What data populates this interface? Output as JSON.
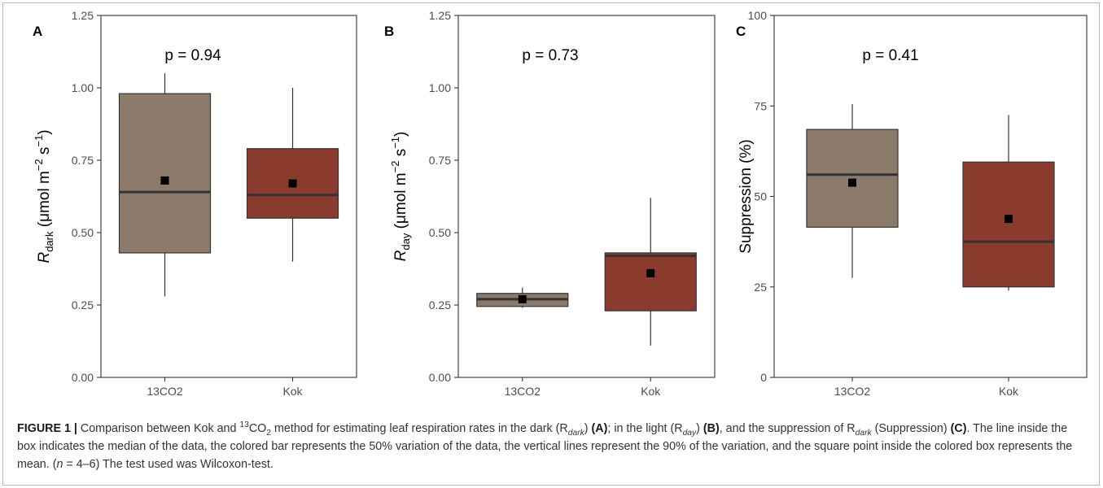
{
  "colors": {
    "box_13co2": "#8c7b6a",
    "box_kok": "#8b3a2e",
    "line": "#333333",
    "mean": "#000000"
  },
  "chart_data": [
    {
      "type": "box",
      "panel": "A",
      "pvalue": "p = 0.94",
      "ylabel": {
        "italic": "R",
        "sub": "dark",
        "rest": " (μmol m",
        "sup1": "−2",
        "mid": " s",
        "sup2": "−1",
        "end": ")"
      },
      "ylim": [
        0,
        1.25
      ],
      "yticks": [
        0,
        0.25,
        0.5,
        0.75,
        1.0,
        1.25
      ],
      "ytick_labels": [
        "0.00",
        "0.25",
        "0.50",
        "0.75",
        "1.00",
        "1.25"
      ],
      "categories": [
        "13CO2",
        "Kok"
      ],
      "boxes": [
        {
          "category": "13CO2",
          "whisker_low": 0.28,
          "q1": 0.43,
          "median": 0.64,
          "q3": 0.98,
          "whisker_high": 1.05,
          "mean": 0.68,
          "color": "#8c7b6a"
        },
        {
          "category": "Kok",
          "whisker_low": 0.4,
          "q1": 0.55,
          "median": 0.63,
          "q3": 0.79,
          "whisker_high": 1.0,
          "mean": 0.67,
          "color": "#8b3a2e"
        }
      ]
    },
    {
      "type": "box",
      "panel": "B",
      "pvalue": "p = 0.73",
      "ylabel": {
        "italic": "R",
        "sub": "day",
        "rest": " (μmol m",
        "sup1": "−2",
        "mid": " s",
        "sup2": "−1",
        "end": ")"
      },
      "ylim": [
        0,
        1.25
      ],
      "yticks": [
        0,
        0.25,
        0.5,
        0.75,
        1.0,
        1.25
      ],
      "ytick_labels": [
        "0.00",
        "0.25",
        "0.50",
        "0.75",
        "1.00",
        "1.25"
      ],
      "categories": [
        "13CO2",
        "Kok"
      ],
      "boxes": [
        {
          "category": "13CO2",
          "whisker_low": 0.24,
          "q1": 0.245,
          "median": 0.27,
          "q3": 0.29,
          "whisker_high": 0.31,
          "mean": 0.27,
          "color": "#8c7b6a"
        },
        {
          "category": "Kok",
          "whisker_low": 0.11,
          "q1": 0.23,
          "median": 0.42,
          "q3": 0.43,
          "whisker_high": 0.62,
          "mean": 0.36,
          "color": "#8b3a2e"
        }
      ]
    },
    {
      "type": "box",
      "panel": "C",
      "pvalue": "p = 0.41",
      "ylabel": {
        "italic": "",
        "sub": "",
        "rest": "Suppression (%)",
        "sup1": "",
        "mid": "",
        "sup2": "",
        "end": ""
      },
      "ylim": [
        0,
        100
      ],
      "yticks": [
        0,
        25,
        50,
        75,
        100
      ],
      "ytick_labels": [
        "0",
        "25",
        "50",
        "75",
        "100"
      ],
      "categories": [
        "13CO2",
        "Kok"
      ],
      "boxes": [
        {
          "category": "13CO2",
          "whisker_low": 27.5,
          "q1": 41.5,
          "median": 56,
          "q3": 68.5,
          "whisker_high": 75.5,
          "mean": 53.8,
          "color": "#8c7b6a"
        },
        {
          "category": "Kok",
          "whisker_low": 24,
          "q1": 25,
          "median": 37.5,
          "q3": 59.5,
          "whisker_high": 72.5,
          "mean": 43.8,
          "color": "#8b3a2e"
        }
      ]
    }
  ],
  "caption": {
    "figure_label": "FIGURE 1 |",
    "s1": " Comparison between Kok and ",
    "co2_sup": "13",
    "co2_base": "CO",
    "co2_sub": "2",
    "s2": " method for estimating leaf respiration rates in the dark (R",
    "dark_sub": "dark",
    "s3": ") ",
    "ref_a": "(A)",
    "s4": "; in the light (R",
    "day_sub": "day",
    "s5": ") ",
    "ref_b": "(B)",
    "s6": ", and the suppression of R",
    "dark_sub2": "dark",
    "s7": " (Suppression) ",
    "ref_c": "(C)",
    "s8": ". The line inside the box indicates the median of the data, the colored bar represents the 50% variation of the data, the vertical lines represent the 90% of the variation, and the square point inside the colored box represents the mean. (",
    "n_italic": "n",
    "s9": " = 4–6) The test used was Wilcoxon-test."
  }
}
